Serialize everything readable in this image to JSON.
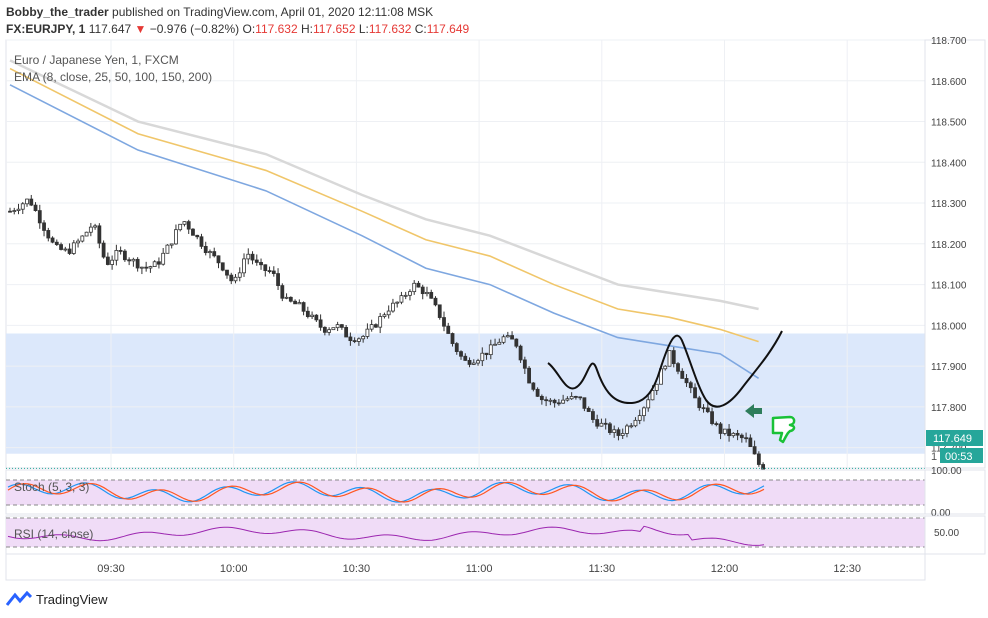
{
  "header": {
    "author": "Bobby_the_trader",
    "published_text": "published on TradingView.com, April 01, 2020 12:11:08 MSK",
    "symbol": "FX:EURJPY, 1",
    "last": "117.647",
    "change": "−0.976 (−0.82%)",
    "o_label": "O:",
    "o_val": "117.632",
    "h_label": "H:",
    "h_val": "117.652",
    "l_label": "L:",
    "l_val": "117.632",
    "c_label": "C:",
    "c_val": "117.649"
  },
  "legends": {
    "main_title": "Euro / Japanese Yen, 1, FXCM",
    "ema": "EMA (8, close, 25, 50, 100, 150, 200)",
    "stoch": "Stoch (5, 3, 3)",
    "rsi": "RSI (14, close)"
  },
  "footer": {
    "brand": "TradingView"
  },
  "colors": {
    "up": "#26a69a",
    "down": "#ef5350",
    "candle": "#333333",
    "ema_blue": "#7ea7e0",
    "ema_gold": "#f0c66a",
    "ema_gray": "#d8d8d8",
    "zone": "#dce8fb",
    "stoch_bg": "#f0dcf7",
    "rsi_line": "#9c27b0"
  },
  "chart_data": {
    "type": "candlestick",
    "symbol": "FX:EURJPY",
    "interval": "1",
    "y_ticks": [
      "118.700",
      "118.600",
      "118.500",
      "118.400",
      "118.300",
      "118.200",
      "118.100",
      "118.000",
      "117.900",
      "117.800",
      "117.700"
    ],
    "x_ticks": [
      "09:30",
      "10:00",
      "10:30",
      "11:00",
      "11:30",
      "12:00",
      "12:30"
    ],
    "ylim": [
      117.65,
      118.7
    ],
    "last_price_label": "117.649",
    "countdown_label": "00:53",
    "last_price_value": 117.649,
    "zone": {
      "from": 117.685,
      "to": 117.98
    },
    "close_path": [
      [
        0,
        118.28
      ],
      [
        6,
        118.31
      ],
      [
        10,
        118.25
      ],
      [
        14,
        118.19
      ],
      [
        18,
        118.18
      ],
      [
        22,
        118.21
      ],
      [
        26,
        118.25
      ],
      [
        30,
        118.15
      ],
      [
        34,
        118.18
      ],
      [
        38,
        118.16
      ],
      [
        42,
        118.14
      ],
      [
        46,
        118.15
      ],
      [
        50,
        118.2
      ],
      [
        54,
        118.26
      ],
      [
        58,
        118.22
      ],
      [
        62,
        118.18
      ],
      [
        66,
        118.15
      ],
      [
        70,
        118.1
      ],
      [
        74,
        118.18
      ],
      [
        78,
        118.14
      ],
      [
        82,
        118.13
      ],
      [
        86,
        118.06
      ],
      [
        90,
        118.05
      ],
      [
        94,
        118.02
      ],
      [
        98,
        117.99
      ],
      [
        102,
        118.0
      ],
      [
        106,
        117.97
      ],
      [
        110,
        117.97
      ],
      [
        114,
        118.0
      ],
      [
        118,
        118.04
      ],
      [
        122,
        118.06
      ],
      [
        126,
        118.1
      ],
      [
        130,
        118.08
      ],
      [
        134,
        118.03
      ],
      [
        138,
        117.96
      ],
      [
        142,
        117.91
      ],
      [
        146,
        117.92
      ],
      [
        150,
        117.94
      ],
      [
        154,
        117.97
      ],
      [
        158,
        117.96
      ],
      [
        162,
        117.87
      ],
      [
        166,
        117.82
      ],
      [
        170,
        117.81
      ],
      [
        174,
        117.82
      ],
      [
        178,
        117.82
      ],
      [
        182,
        117.77
      ],
      [
        186,
        117.75
      ],
      [
        190,
        117.73
      ],
      [
        194,
        117.76
      ],
      [
        198,
        117.8
      ],
      [
        202,
        117.86
      ],
      [
        206,
        117.93
      ],
      [
        210,
        117.88
      ],
      [
        214,
        117.82
      ],
      [
        218,
        117.78
      ],
      [
        222,
        117.74
      ],
      [
        226,
        117.73
      ],
      [
        230,
        117.72
      ],
      [
        234,
        117.66
      ],
      [
        236,
        117.64
      ]
    ],
    "ema_lines": [
      {
        "points": [
          [
            0,
            118.59
          ],
          [
            40,
            118.43
          ],
          [
            80,
            118.33
          ],
          [
            110,
            118.22
          ],
          [
            130,
            118.14
          ],
          [
            150,
            118.1
          ],
          [
            170,
            118.03
          ],
          [
            190,
            117.97
          ],
          [
            206,
            117.95
          ],
          [
            222,
            117.93
          ],
          [
            234,
            117.87
          ]
        ]
      },
      {
        "points": [
          [
            0,
            118.63
          ],
          [
            40,
            118.47
          ],
          [
            80,
            118.38
          ],
          [
            110,
            118.28
          ],
          [
            130,
            118.21
          ],
          [
            150,
            118.17
          ],
          [
            170,
            118.1
          ],
          [
            190,
            118.04
          ],
          [
            206,
            118.02
          ],
          [
            222,
            117.99
          ],
          [
            234,
            117.96
          ]
        ]
      },
      {
        "points": [
          [
            0,
            118.65
          ],
          [
            40,
            118.5
          ],
          [
            80,
            118.42
          ],
          [
            110,
            118.32
          ],
          [
            130,
            118.26
          ],
          [
            150,
            118.22
          ],
          [
            170,
            118.16
          ],
          [
            190,
            118.1
          ],
          [
            206,
            118.08
          ],
          [
            222,
            118.06
          ],
          [
            234,
            118.04
          ]
        ]
      }
    ],
    "annotation": {
      "kind": "handdrawn",
      "markers": [
        "green-arrow",
        "thumbs-down"
      ]
    },
    "stoch": {
      "ylabels": [
        "100.00",
        "0.00"
      ]
    },
    "rsi": {
      "ylabels": [
        "50.00"
      ]
    }
  }
}
